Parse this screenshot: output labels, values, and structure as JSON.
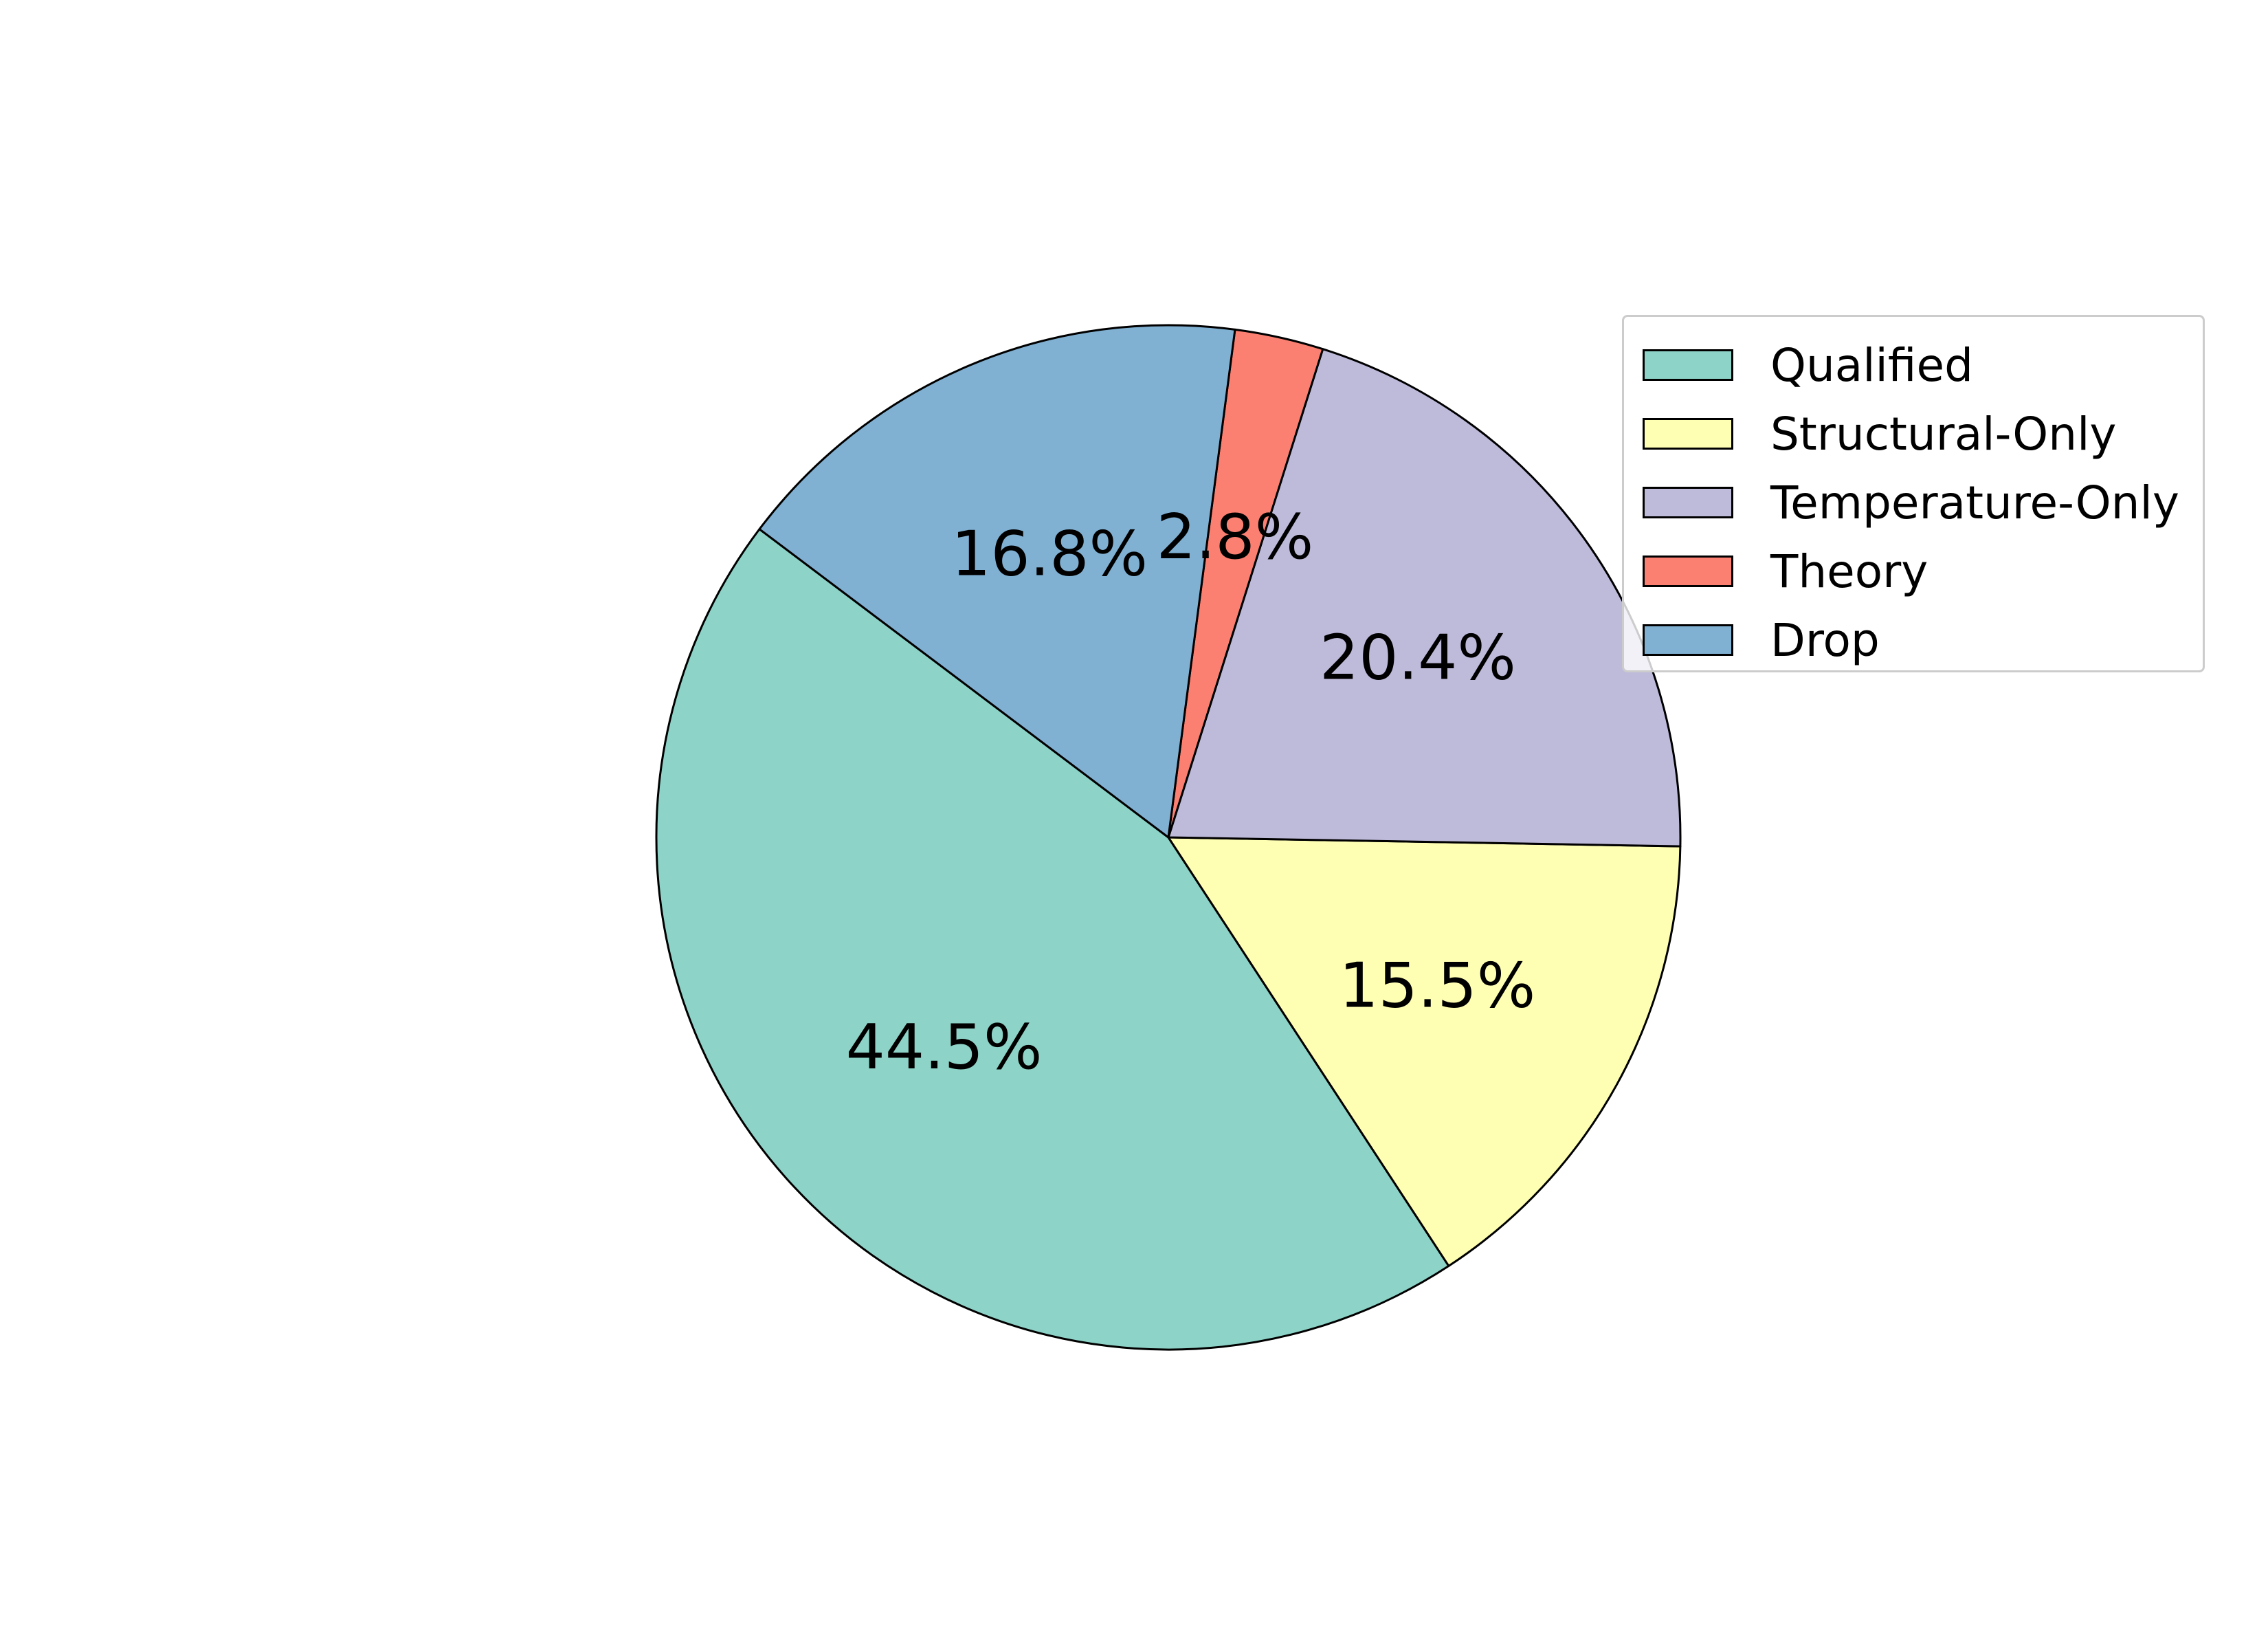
{
  "chart_data": {
    "type": "pie",
    "title": "",
    "categories": [
      "Qualified",
      "Structural-Only",
      "Temperature-Only",
      "Theory",
      "Drop"
    ],
    "values": [
      44.5,
      15.5,
      20.4,
      2.8,
      16.8
    ],
    "value_labels": [
      "44.5%",
      "15.5%",
      "20.4%",
      "2.8%",
      "16.8%"
    ],
    "colors": [
      "#8dd3c7",
      "#ffffb3",
      "#bebada",
      "#fb8072",
      "#80b1d3"
    ],
    "legend_position": "upper-right",
    "start_angle_deg": 143
  }
}
